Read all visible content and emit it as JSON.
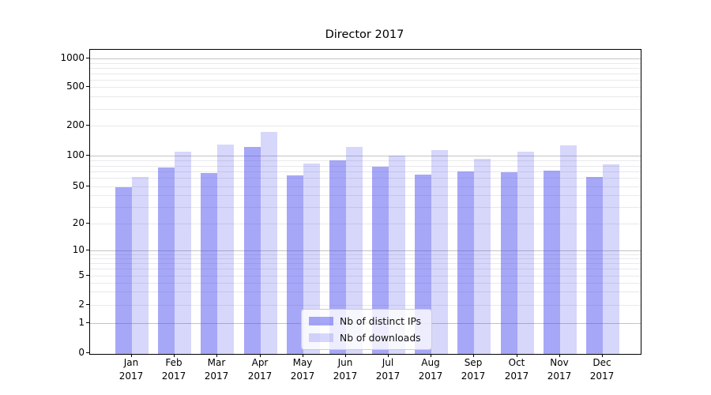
{
  "chart_data": {
    "type": "bar",
    "title": "Director 2017",
    "xlabel": "",
    "ylabel": "",
    "yscale": "symlog",
    "ylim": [
      0,
      1000
    ],
    "yticks": [
      0,
      1,
      2,
      5,
      10,
      20,
      50,
      100,
      200,
      500,
      1000
    ],
    "grid": true,
    "categories": [
      "Jan 2017",
      "Feb 2017",
      "Mar 2017",
      "Apr 2017",
      "May 2017",
      "Jun 2017",
      "Jul 2017",
      "Aug 2017",
      "Sep 2017",
      "Oct 2017",
      "Nov 2017",
      "Dec 2017"
    ],
    "series": [
      {
        "name": "Nb of distinct IPs",
        "color": "#4444ee78",
        "values": [
          49,
          76,
          68,
          124,
          64,
          91,
          78,
          65,
          70,
          69,
          71,
          62
        ]
      },
      {
        "name": "Nb of downloads",
        "color": "#4444ee36",
        "values": [
          62,
          110,
          131,
          173,
          84,
          124,
          100,
          114,
          94,
          111,
          127,
          83
        ]
      }
    ],
    "legend": {
      "position": "lower-center",
      "entries": [
        "Nb of distinct IPs",
        "Nb of downloads"
      ]
    }
  }
}
